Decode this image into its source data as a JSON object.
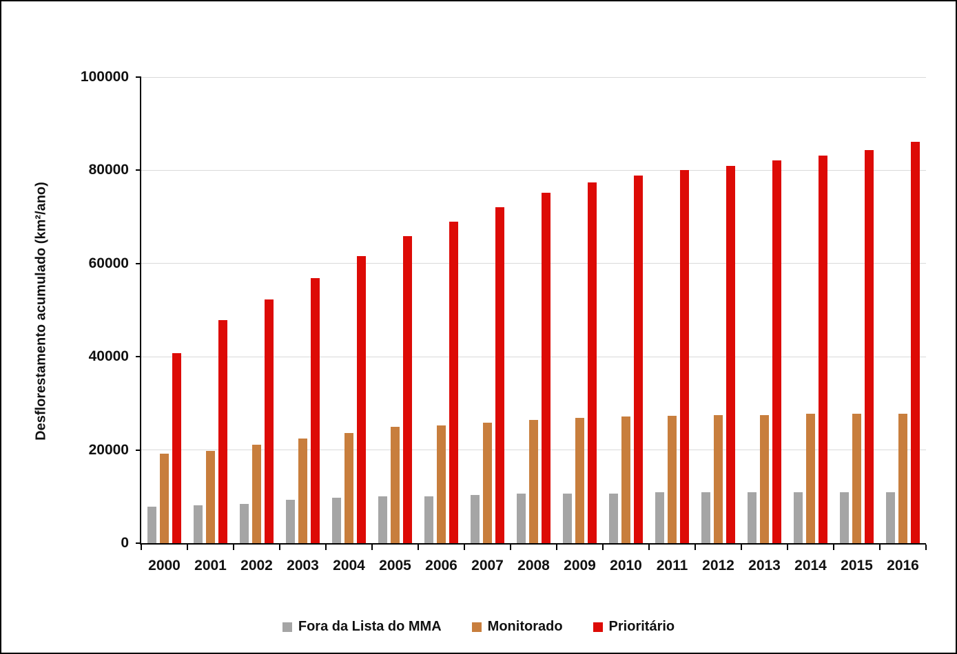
{
  "chart_data": {
    "type": "bar",
    "title": "",
    "xlabel": "",
    "ylabel": "Desflorestamento acumulado (km²/ano)",
    "ylim": [
      0,
      100000
    ],
    "yticks": [
      0,
      20000,
      40000,
      60000,
      80000,
      100000
    ],
    "grid": true,
    "legend_position": "bottom",
    "categories": [
      "2000",
      "2001",
      "2002",
      "2003",
      "2004",
      "2005",
      "2006",
      "2007",
      "2008",
      "2009",
      "2010",
      "2011",
      "2012",
      "2013",
      "2014",
      "2015",
      "2016"
    ],
    "series": [
      {
        "name": "Fora da Lista do MMA",
        "color": "#a5a5a5",
        "values": [
          7800,
          8100,
          8400,
          9300,
          9700,
          10000,
          10000,
          10300,
          10600,
          10700,
          10700,
          10900,
          10900,
          11000,
          11000,
          11000,
          10900
        ]
      },
      {
        "name": "Monitorado",
        "color": "#c87e3d",
        "values": [
          19200,
          19800,
          21100,
          22500,
          23700,
          25000,
          25300,
          25900,
          26500,
          26900,
          27200,
          27400,
          27500,
          27500,
          27700,
          27800,
          27800
        ]
      },
      {
        "name": "Prioritário",
        "color": "#dd0b06",
        "values": [
          40700,
          47800,
          52300,
          56800,
          61600,
          65900,
          69000,
          72100,
          75200,
          77400,
          78900,
          80100,
          81000,
          82200,
          83100,
          84300,
          86100
        ]
      }
    ],
    "colors": {
      "gridline": "#d9d9d9",
      "axis": "#000000",
      "text": "#111111"
    }
  }
}
